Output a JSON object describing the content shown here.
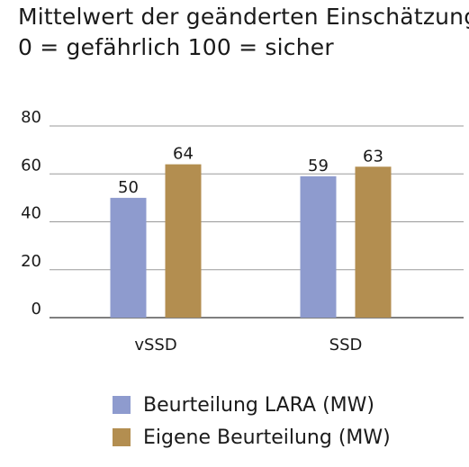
{
  "chart_data": {
    "type": "bar",
    "title": "Mittelwert der geänderten Einschätzung",
    "subtitle": "0 = gefährlich 100 = sicher",
    "categories": [
      "vSSD",
      "SSD"
    ],
    "series": [
      {
        "name": "Beurteilung LARA (MW)",
        "values": [
          50,
          59
        ],
        "color": "#8e9bce"
      },
      {
        "name": "Eigene Beurteilung (MW)",
        "values": [
          64,
          63
        ],
        "color": "#b38e50"
      }
    ],
    "ylim": [
      0,
      80
    ],
    "yticks": [
      0,
      20,
      40,
      60,
      80
    ],
    "grid": true,
    "legend": "bottom",
    "xlabel": "",
    "ylabel": ""
  }
}
